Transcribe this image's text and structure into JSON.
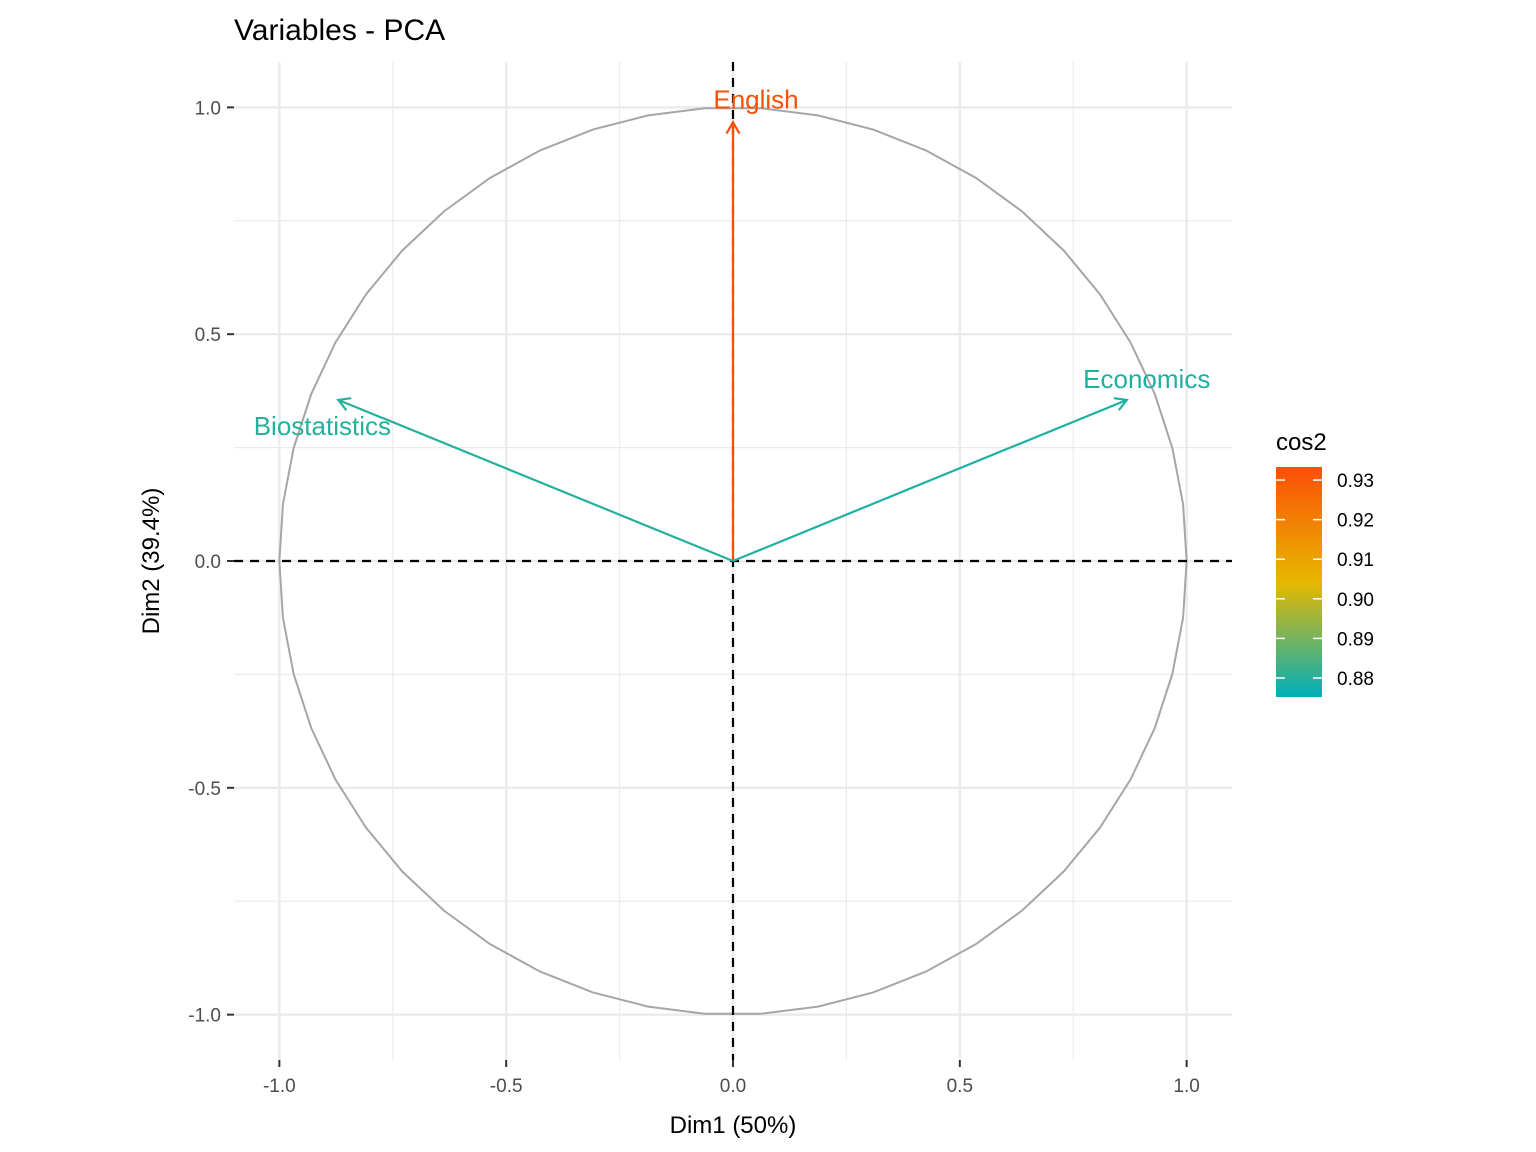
{
  "chart_data": {
    "type": "scatter",
    "subtype": "pca-variable-correlation-circle",
    "title": "Variables - PCA",
    "xlabel": "Dim1 (50%)",
    "ylabel": "Dim2 (39.4%)",
    "xlim": [
      -1.1,
      1.1
    ],
    "ylim": [
      -1.1,
      1.1
    ],
    "xticks": [
      -1.0,
      -0.5,
      0.0,
      0.5,
      1.0
    ],
    "xtick_labels": [
      "-1.0",
      "-0.5",
      "0.0",
      "0.5",
      "1.0"
    ],
    "yticks": [
      -1.0,
      -0.5,
      0.0,
      0.5,
      1.0
    ],
    "ytick_labels": [
      "-1.0",
      "-0.5",
      "0.0",
      "0.5",
      "1.0"
    ],
    "grid": true,
    "variables": [
      {
        "name": "English",
        "x": 0.0,
        "y": 0.967,
        "cos2": 0.935
      },
      {
        "name": "Economics",
        "x": 0.868,
        "y": 0.355,
        "cos2": 0.879
      },
      {
        "name": "Biostatistics",
        "x": -0.87,
        "y": 0.355,
        "cos2": 0.88
      }
    ],
    "legend": {
      "title": "cos2",
      "placement": "right",
      "range": [
        0.8752,
        0.9333
      ],
      "ticks": [
        0.93,
        0.92,
        0.91,
        0.9,
        0.89,
        0.88
      ],
      "tick_labels": [
        "0.93",
        "0.92",
        "0.91",
        "0.90",
        "0.89",
        "0.88"
      ],
      "colors": [
        "#00AFBB",
        "#E7B800",
        "#FC4E07"
      ]
    },
    "circle_color": "#A6A6A6",
    "grid_color": "#EBEBEB"
  }
}
